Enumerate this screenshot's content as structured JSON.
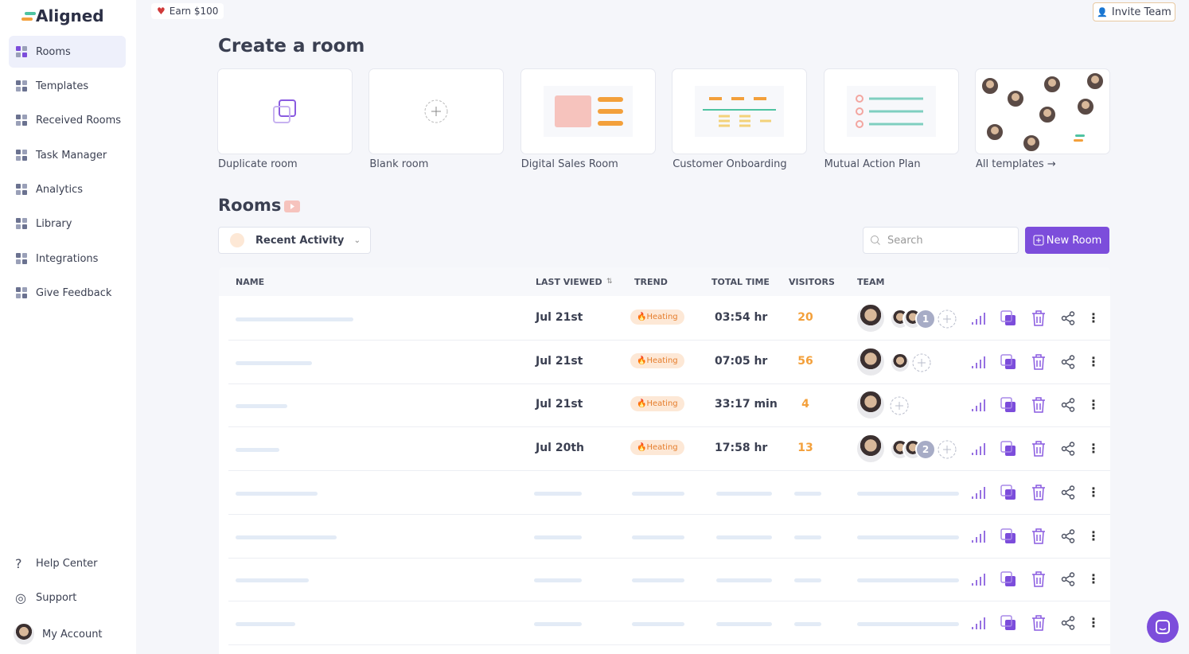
{
  "brand": "Aligned",
  "top_bar": {
    "promo": "Earn $100",
    "invite": "Invite Team"
  },
  "nav": {
    "items": [
      "Rooms",
      "Templates",
      "Received Rooms",
      "Task Manager",
      "Analytics",
      "Library",
      "Integrations",
      "Give Feedback"
    ],
    "footer": [
      "Help Center",
      "Support",
      "My Account"
    ]
  },
  "create": {
    "title": "Create a room",
    "cards": [
      "Duplicate room",
      "Blank room",
      "Digital Sales Room",
      "Customer Onboarding",
      "Mutual Action Plan",
      "All templates"
    ]
  },
  "rooms": {
    "title": "Rooms",
    "filter": "Recent Activity",
    "search_placeholder": "Search",
    "new_button": "New Room",
    "table": {
      "columns": [
        "NAME",
        "LAST VIEWED",
        "TREND",
        "TOTAL TIME",
        "VISITORS",
        "TEAM"
      ],
      "rows": [
        {
          "last_viewed": "Jul 21st",
          "trend": "Heating",
          "total_time": "03:54 hr",
          "visitors": 20,
          "extra_members": 1
        },
        {
          "last_viewed": "Jul 21st",
          "trend": "Heating",
          "total_time": "07:05 hr",
          "visitors": 56
        },
        {
          "last_viewed": "Jul 21st",
          "trend": "Heating",
          "total_time": "33:17 min",
          "visitors": 4
        },
        {
          "last_viewed": "Jul 20th",
          "trend": "Heating",
          "total_time": "17:58 hr",
          "visitors": 13,
          "extra_members": 2
        }
      ]
    }
  }
}
